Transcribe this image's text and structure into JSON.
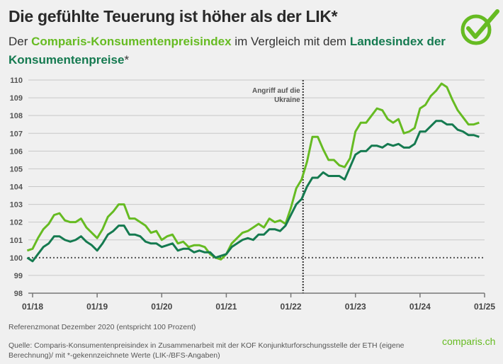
{
  "header": {
    "title": "Die gefühlte Teuerung ist höher als der LIK*",
    "subtitle_prefix": "Der ",
    "subtitle_series1": "Comparis-Konsumentenpreisindex",
    "subtitle_mid": " im Vergleich mit dem ",
    "subtitle_series2": "Landesindex der Konsumentenpreise",
    "subtitle_suffix": "*"
  },
  "colors": {
    "comparis": "#66bb22",
    "lik": "#157a50",
    "grid": "#cccccc",
    "axis": "#777777"
  },
  "logo_icon": "check-circle-icon",
  "footer": {
    "note": "Referenzmonat Dezember 2020 (entspricht 100 Prozent)",
    "source": "Quelle: Comparis-Konsumentenpreisindex in Zusammenarbeit mit der KOF Konjunkturforschungsstelle der ETH (eigene Berechnung)/ mit *-gekennzeichnete Werte (LIK-/BFS-Angaben)",
    "brand": "comparis.ch"
  },
  "chart_data": {
    "type": "line",
    "title": "Die gefühlte Teuerung ist höher als der LIK*",
    "xlabel": "",
    "ylabel": "",
    "ylim": [
      98,
      110
    ],
    "yticks": [
      98,
      99,
      100,
      101,
      102,
      103,
      104,
      105,
      106,
      107,
      108,
      109,
      110
    ],
    "xtick_labels": [
      "01/18",
      "01/19",
      "01/20",
      "01/21",
      "01/22",
      "01/23",
      "01/24",
      "01/25"
    ],
    "grid": true,
    "reference_line": {
      "y": 100,
      "style": "dotted"
    },
    "annotation": {
      "label_line1": "Angriff auf die",
      "label_line2": "Ukraine",
      "x_month_index": 51,
      "style": "dotted-vertical"
    },
    "x_start": "12/2017",
    "x_step": "month",
    "series": [
      {
        "name": "Comparis-Konsumentenpreisindex",
        "color": "#66bb22",
        "values": [
          100.4,
          100.5,
          101.1,
          101.6,
          101.9,
          102.4,
          102.5,
          102.1,
          102.0,
          102.0,
          102.2,
          101.7,
          101.4,
          101.1,
          101.6,
          102.3,
          102.6,
          103.0,
          103.0,
          102.2,
          102.2,
          102.0,
          101.8,
          101.4,
          101.5,
          101.0,
          101.2,
          101.3,
          100.8,
          100.9,
          100.6,
          100.7,
          100.7,
          100.6,
          100.2,
          100.0,
          99.9,
          100.2,
          100.8,
          101.1,
          101.4,
          101.5,
          101.7,
          101.9,
          101.7,
          102.2,
          102.0,
          102.1,
          101.9,
          102.8,
          103.9,
          104.4,
          105.4,
          106.8,
          106.8,
          106.1,
          105.5,
          105.5,
          105.2,
          105.1,
          105.6,
          107.1,
          107.6,
          107.6,
          108.0,
          108.4,
          108.3,
          107.8,
          107.6,
          107.8,
          107.0,
          107.1,
          107.3,
          108.4,
          108.6,
          109.1,
          109.4,
          109.8,
          109.6,
          108.9,
          108.3,
          107.9,
          107.5,
          107.5,
          107.6
        ],
        "comment": "monthly values 12/2017 to 12/2024 (approximate, read from gridlines)"
      },
      {
        "name": "Landesindex der Konsumentenpreise*",
        "color": "#157a50",
        "values": [
          100.0,
          99.8,
          100.2,
          100.6,
          100.8,
          101.2,
          101.2,
          101.0,
          100.9,
          101.0,
          101.2,
          100.9,
          100.7,
          100.4,
          100.8,
          101.3,
          101.5,
          101.8,
          101.8,
          101.3,
          101.3,
          101.2,
          100.9,
          100.8,
          100.8,
          100.6,
          100.7,
          100.8,
          100.4,
          100.5,
          100.5,
          100.3,
          100.4,
          100.3,
          100.3,
          100.0,
          100.1,
          100.2,
          100.6,
          100.8,
          101.0,
          101.1,
          101.0,
          101.3,
          101.3,
          101.6,
          101.6,
          101.5,
          101.8,
          102.4,
          103.0,
          103.3,
          104.0,
          104.5,
          104.5,
          104.8,
          104.6,
          104.6,
          104.6,
          104.4,
          105.1,
          105.8,
          106.0,
          106.0,
          106.3,
          106.3,
          106.2,
          106.4,
          106.3,
          106.4,
          106.2,
          106.2,
          106.4,
          107.1,
          107.1,
          107.4,
          107.7,
          107.7,
          107.5,
          107.5,
          107.2,
          107.1,
          106.9,
          106.9,
          106.8
        ],
        "comment": "monthly values 12/2017 to 12/2024 (approximate)"
      }
    ]
  }
}
